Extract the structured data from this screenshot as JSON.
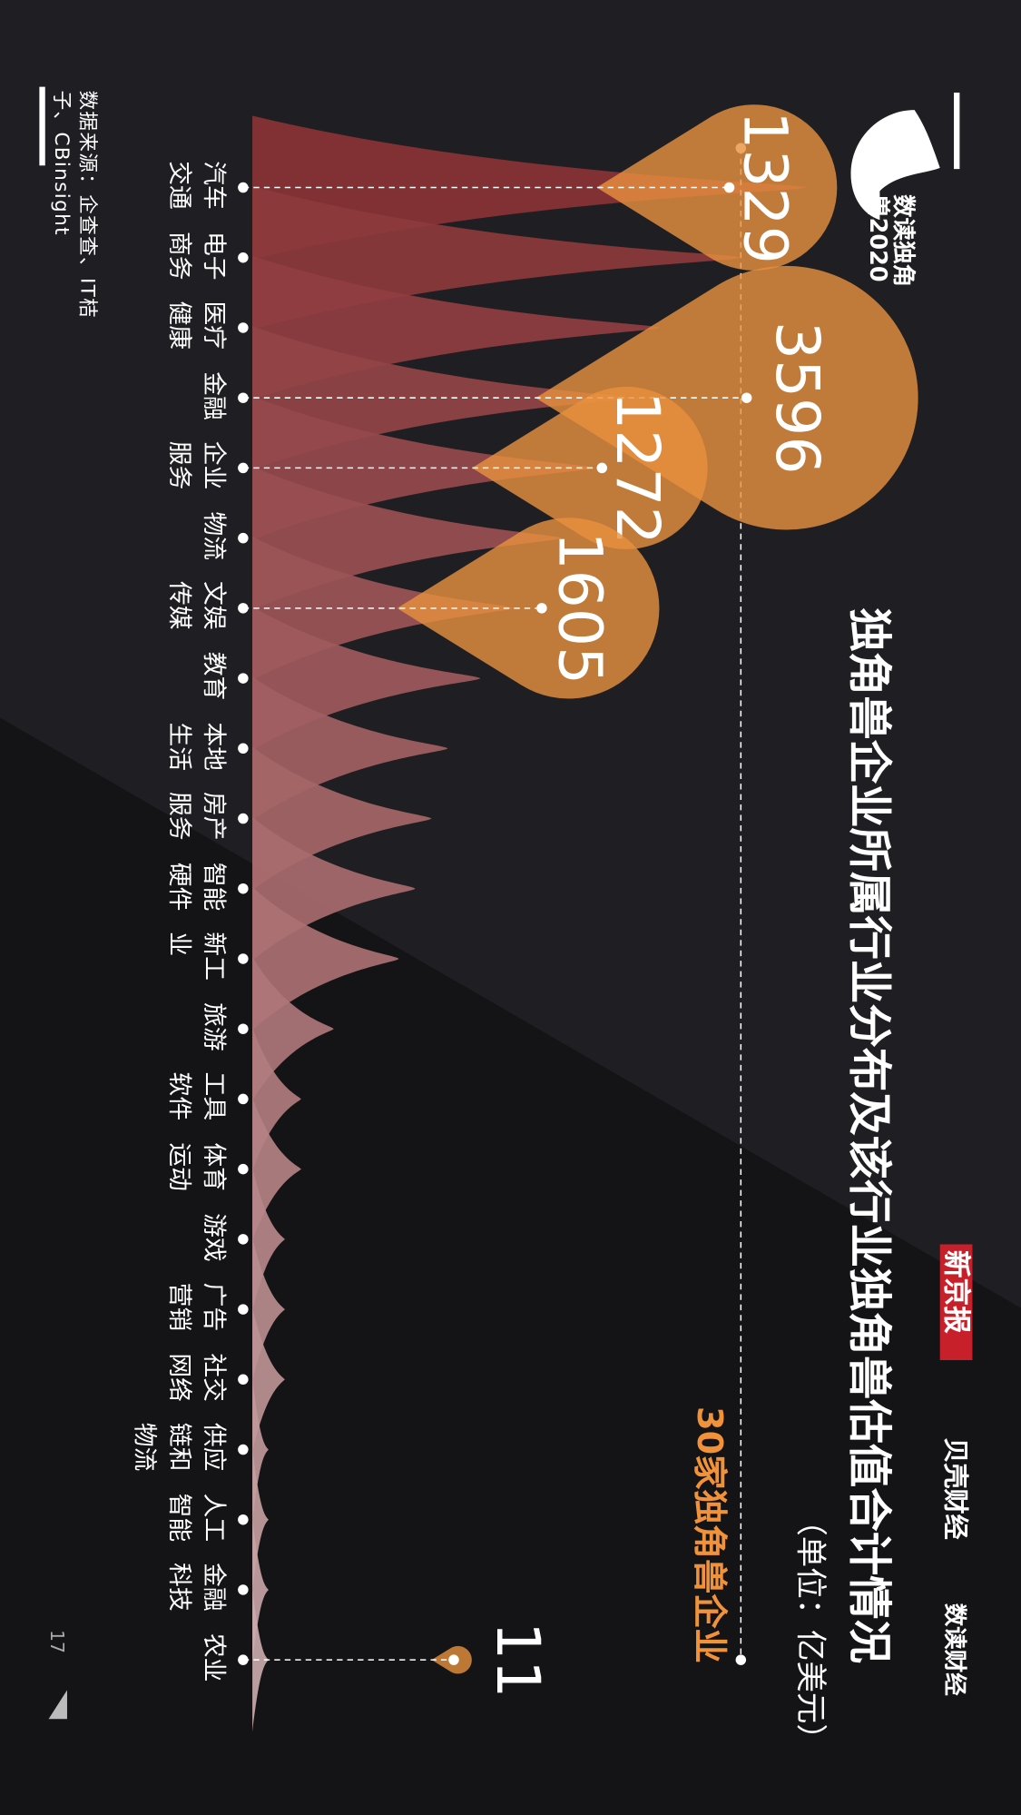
{
  "chart_data": {
    "type": "ridgeline",
    "title": "独角兽企业所属行业分布及该行业独角兽估值合计情况",
    "subtitle": "（单位：亿美元）",
    "categories": [
      "汽车交通",
      "电子商务",
      "医疗健康",
      "金融",
      "企业服务",
      "物流",
      "文娱传媒",
      "教育",
      "本地生活",
      "房产服务",
      "智能硬件",
      "新工业",
      "旅游",
      "工具软件",
      "体育运动",
      "游戏",
      "广告营销",
      "社交网络",
      "供应链和物流",
      "人工智能",
      "金融科技",
      "农业"
    ],
    "values": [
      34,
      30,
      25,
      23,
      21,
      19,
      16,
      14,
      12,
      11,
      10,
      9,
      5,
      3,
      3,
      2,
      2,
      2,
      1,
      1,
      1,
      1
    ],
    "valuations": [
      1329,
      null,
      null,
      3596,
      1272,
      null,
      1605,
      null,
      null,
      null,
      null,
      null,
      null,
      null,
      null,
      null,
      null,
      null,
      null,
      null,
      null,
      11
    ],
    "xlim": [
      0,
      30
    ],
    "reference": {
      "value": 30,
      "label": "30家独角兽企业"
    },
    "color_start": "#8a3336",
    "color_end": "#c9a9ab",
    "bubble_color": "#e8913f",
    "source": "数据来源：企查查、IT桔子、CBinsight",
    "page_number": "17",
    "brands": [
      "数读独角兽2020",
      "新京报",
      "贝壳财经",
      "数读财经"
    ]
  }
}
